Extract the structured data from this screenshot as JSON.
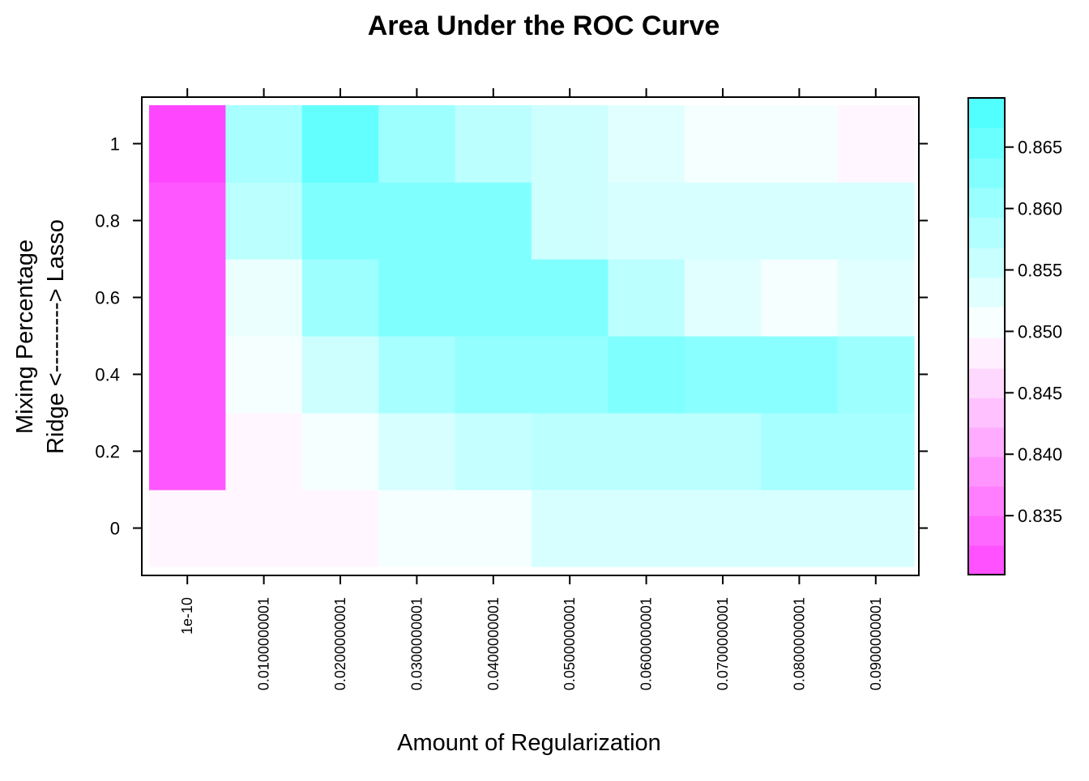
{
  "chart_data": {
    "type": "heatmap",
    "title": "Area Under the ROC Curve",
    "xlabel": "Amount of Regularization",
    "ylabel_lines": [
      "Mixing Percentage",
      "Ridge <---------> Lasso"
    ],
    "x": [
      "1e-10",
      "0.0100000001",
      "0.0200000001",
      "0.0300000001",
      "0.0400000001",
      "0.0500000001",
      "0.0600000001",
      "0.0700000001",
      "0.0800000001",
      "0.0900000001"
    ],
    "y": [
      0,
      0.2,
      0.4,
      0.6,
      0.8,
      1
    ],
    "y_tick_labels": [
      "0",
      "0.2",
      "0.4",
      "0.6",
      "0.8",
      "1"
    ],
    "z": [
      [
        0.849,
        0.849,
        0.849,
        0.851,
        0.851,
        0.854,
        0.854,
        0.854,
        0.854,
        0.854
      ],
      [
        0.832,
        0.849,
        0.851,
        0.854,
        0.856,
        0.857,
        0.857,
        0.857,
        0.859,
        0.859
      ],
      [
        0.832,
        0.851,
        0.855,
        0.859,
        0.861,
        0.861,
        0.863,
        0.862,
        0.862,
        0.86
      ],
      [
        0.832,
        0.852,
        0.86,
        0.863,
        0.863,
        0.863,
        0.857,
        0.853,
        0.851,
        0.853
      ],
      [
        0.832,
        0.857,
        0.863,
        0.863,
        0.863,
        0.855,
        0.854,
        0.854,
        0.854,
        0.854
      ],
      [
        0.83,
        0.859,
        0.866,
        0.86,
        0.857,
        0.855,
        0.853,
        0.851,
        0.851,
        0.849
      ]
    ],
    "color_scale": {
      "low": "#FF46FF",
      "mid": "#FFFFFF",
      "high": "#46FFFF",
      "min": 0.8302,
      "max": 0.869,
      "mid_value": 0.85,
      "breaks": [
        0.8302,
        0.8326,
        0.835,
        0.8374,
        0.8398,
        0.8422,
        0.8446,
        0.847,
        0.8495,
        0.852,
        0.8544,
        0.8568,
        0.8593,
        0.8617,
        0.8641,
        0.8666,
        0.869
      ]
    },
    "colorbar_ticks": [
      0.835,
      0.84,
      0.845,
      0.85,
      0.855,
      0.86,
      0.865
    ],
    "colorbar_tick_labels": [
      "0.835",
      "0.840",
      "0.845",
      "0.850",
      "0.855",
      "0.860",
      "0.865"
    ],
    "grid": false,
    "legend": "right colorbar"
  }
}
